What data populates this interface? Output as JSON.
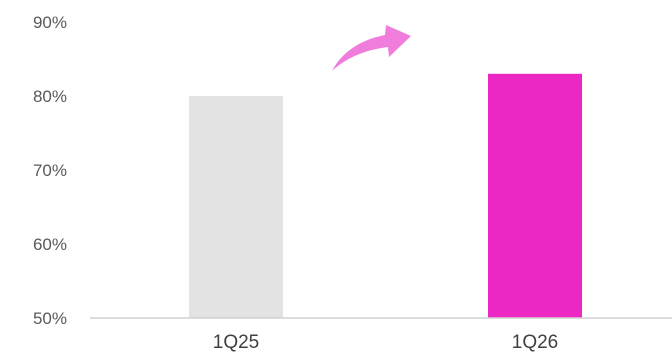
{
  "chart_data": {
    "type": "bar",
    "categories": [
      "1Q25",
      "1Q26"
    ],
    "series": [
      {
        "values": [
          80,
          83
        ]
      }
    ],
    "bar_colors": [
      "#e3e3e3",
      "#ec27c4"
    ],
    "ylim": [
      50,
      90
    ],
    "yticks": [
      50,
      60,
      70,
      80,
      90
    ],
    "ytick_labels": [
      "50%",
      "60%",
      "70%",
      "80%",
      "90%"
    ],
    "grid": false,
    "annotation": {
      "shape": "curved-arrow-up-right",
      "color": "#f07cdc"
    }
  }
}
